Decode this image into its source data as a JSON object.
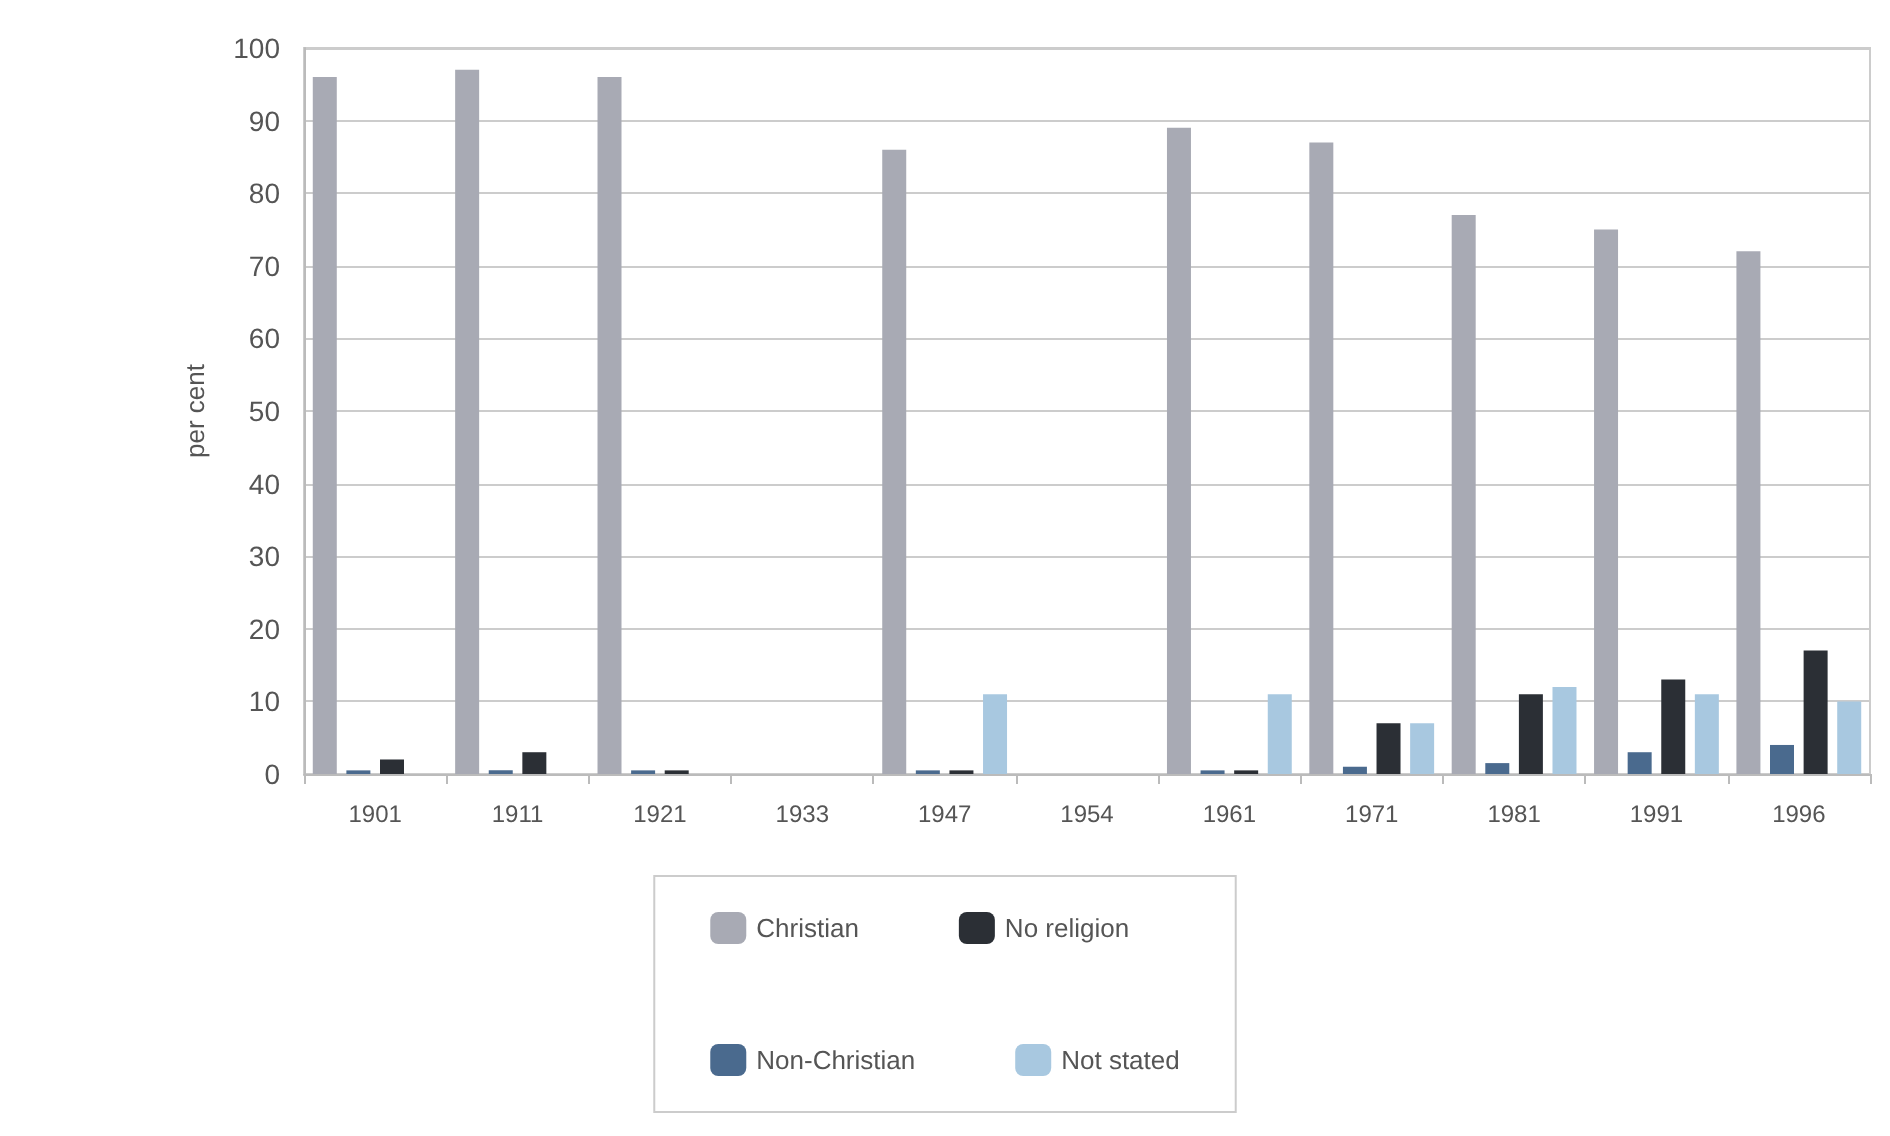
{
  "chart_data": {
    "type": "bar",
    "ylabel": "per cent",
    "categories": [
      "1901",
      "1911",
      "1921",
      "1933",
      "1947",
      "1954",
      "1961",
      "1971",
      "1981",
      "1991",
      "1996"
    ],
    "series": [
      {
        "name": "Christian",
        "color": "#a8aab4",
        "values": [
          96,
          97,
          96,
          null,
          86,
          null,
          89,
          87,
          77,
          75,
          72
        ]
      },
      {
        "name": "Non-Christian",
        "color": "#4a6a8e",
        "values": [
          0.5,
          0.5,
          0.5,
          null,
          0.5,
          null,
          0.5,
          1,
          1.5,
          3,
          4
        ]
      },
      {
        "name": "No religion",
        "color": "#2b2f35",
        "values": [
          2,
          3,
          0.5,
          null,
          0.5,
          null,
          0.5,
          7,
          11,
          13,
          17
        ]
      },
      {
        "name": "Not stated",
        "color": "#a8c8e0",
        "values": [
          null,
          null,
          null,
          null,
          11,
          null,
          11,
          7,
          12,
          11,
          10
        ]
      }
    ],
    "ylim": [
      0,
      100
    ],
    "yticks": [
      0,
      10,
      20,
      30,
      40,
      50,
      60,
      70,
      80,
      90,
      100
    ],
    "grid": "y",
    "legend": "bottom"
  }
}
